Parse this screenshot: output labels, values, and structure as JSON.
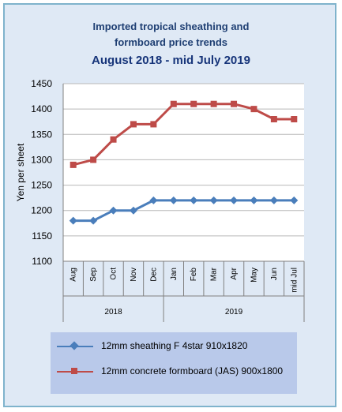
{
  "chart_data": {
    "type": "line",
    "title": [
      "Imported tropical sheathing and",
      "formboard price trends",
      "August 2018 - mid July 2019"
    ],
    "ylabel": "Yen per sheet",
    "ylim": [
      1100,
      1450
    ],
    "yticks": [
      1100,
      1150,
      1200,
      1250,
      1300,
      1350,
      1400,
      1450
    ],
    "categories": [
      "Aug",
      "Sep",
      "Oct",
      "Nov",
      "Dec",
      "Jan",
      "Feb",
      "Mar",
      "Apr",
      "May",
      "Jun",
      "mid Jul"
    ],
    "groups": [
      {
        "label": "2018",
        "count": 5
      },
      {
        "label": "2019",
        "count": 7
      }
    ],
    "grid": true,
    "legend_position": "bottom",
    "series": [
      {
        "name": "12mm sheathing F 4star 910x1820",
        "color": "#4a7ebb",
        "marker": "diamond",
        "values": [
          1180,
          1180,
          1200,
          1200,
          1220,
          1220,
          1220,
          1220,
          1220,
          1220,
          1220,
          1220
        ]
      },
      {
        "name": "12mm concrete formboard (JAS) 900x1800",
        "color": "#be4b48",
        "marker": "square",
        "values": [
          1290,
          1300,
          1340,
          1370,
          1370,
          1410,
          1410,
          1410,
          1410,
          1400,
          1380,
          1380
        ]
      }
    ]
  }
}
